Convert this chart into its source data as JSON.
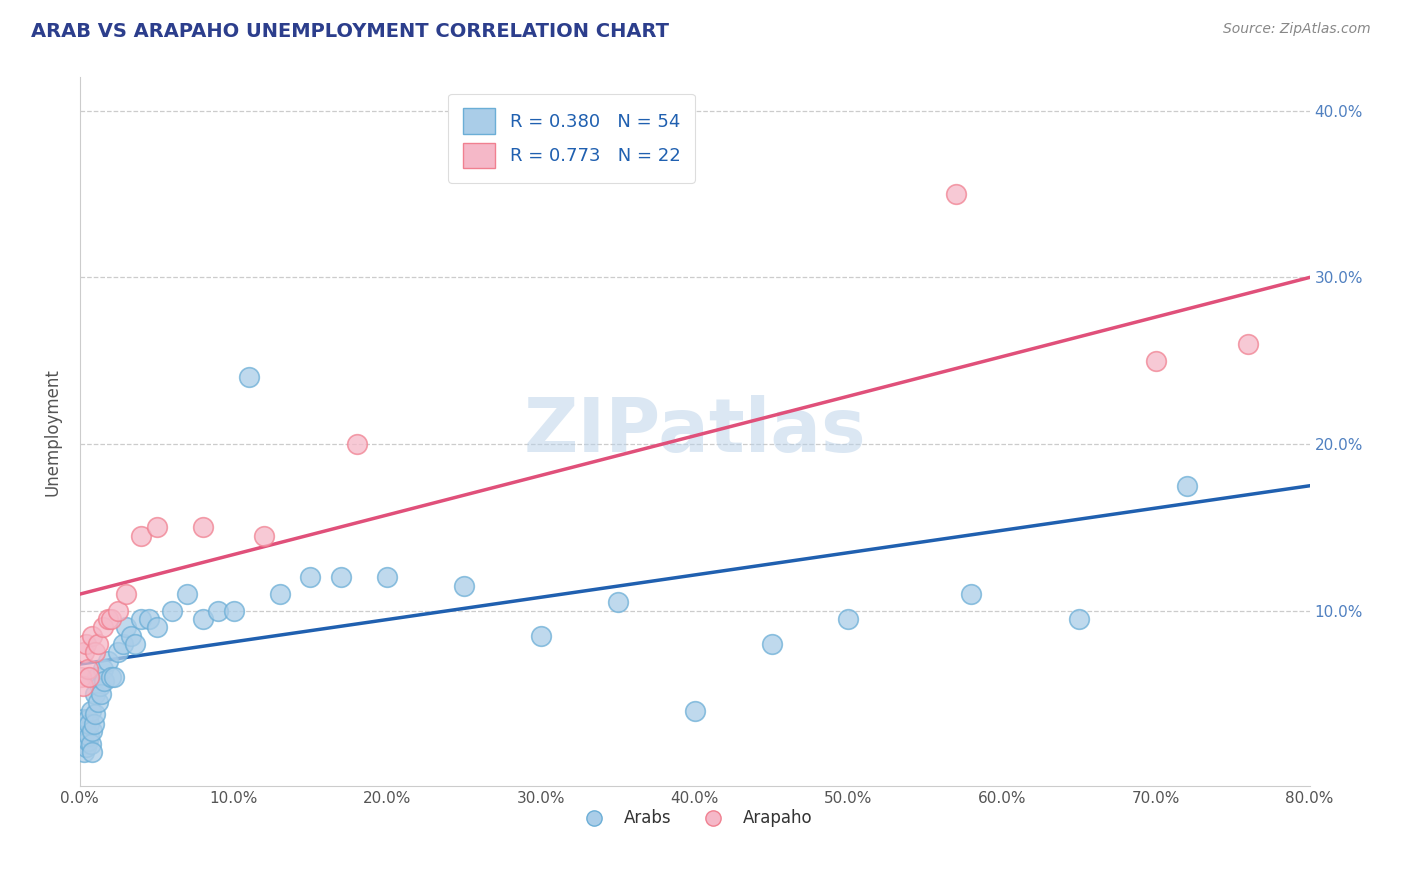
{
  "title": "ARAB VS ARAPAHO UNEMPLOYMENT CORRELATION CHART",
  "source": "Source: ZipAtlas.com",
  "ylabel": "Unemployment",
  "xlim": [
    0,
    0.8
  ],
  "ylim": [
    -0.005,
    0.42
  ],
  "xticks": [
    0.0,
    0.1,
    0.2,
    0.3,
    0.4,
    0.5,
    0.6,
    0.7,
    0.8
  ],
  "yticks": [
    0.1,
    0.2,
    0.3,
    0.4
  ],
  "xtick_labels": [
    "0.0%",
    "10.0%",
    "20.0%",
    "30.0%",
    "40.0%",
    "50.0%",
    "60.0%",
    "70.0%",
    "80.0%"
  ],
  "ytick_labels_right": [
    "10.0%",
    "20.0%",
    "30.0%",
    "40.0%"
  ],
  "watermark": "ZIPatlas",
  "arab_color": "#aacde8",
  "arapaho_color": "#f5b8c8",
  "arab_edge_color": "#6baed6",
  "arapaho_edge_color": "#f08090",
  "arab_line_color": "#2060b0",
  "arapaho_line_color": "#e0507a",
  "arab_R": 0.38,
  "arab_N": 54,
  "arapaho_R": 0.773,
  "arapaho_N": 22,
  "arab_x": [
    0.001,
    0.002,
    0.002,
    0.003,
    0.003,
    0.004,
    0.004,
    0.005,
    0.005,
    0.006,
    0.006,
    0.007,
    0.007,
    0.008,
    0.008,
    0.009,
    0.01,
    0.01,
    0.011,
    0.012,
    0.013,
    0.014,
    0.015,
    0.016,
    0.018,
    0.02,
    0.022,
    0.025,
    0.028,
    0.03,
    0.033,
    0.036,
    0.04,
    0.045,
    0.05,
    0.06,
    0.07,
    0.08,
    0.09,
    0.1,
    0.11,
    0.13,
    0.15,
    0.17,
    0.2,
    0.25,
    0.3,
    0.35,
    0.4,
    0.45,
    0.5,
    0.58,
    0.65,
    0.72
  ],
  "arab_y": [
    0.03,
    0.025,
    0.035,
    0.02,
    0.015,
    0.028,
    0.018,
    0.022,
    0.035,
    0.025,
    0.032,
    0.02,
    0.04,
    0.028,
    0.015,
    0.032,
    0.05,
    0.038,
    0.06,
    0.045,
    0.055,
    0.05,
    0.065,
    0.058,
    0.07,
    0.06,
    0.06,
    0.075,
    0.08,
    0.09,
    0.085,
    0.08,
    0.095,
    0.095,
    0.09,
    0.1,
    0.11,
    0.095,
    0.1,
    0.1,
    0.24,
    0.11,
    0.12,
    0.12,
    0.12,
    0.115,
    0.085,
    0.105,
    0.04,
    0.08,
    0.095,
    0.11,
    0.095,
    0.175
  ],
  "arapaho_x": [
    0.001,
    0.002,
    0.003,
    0.004,
    0.005,
    0.006,
    0.008,
    0.01,
    0.012,
    0.015,
    0.018,
    0.02,
    0.025,
    0.03,
    0.04,
    0.05,
    0.08,
    0.12,
    0.18,
    0.57,
    0.7,
    0.76
  ],
  "arapaho_y": [
    0.06,
    0.055,
    0.075,
    0.08,
    0.065,
    0.06,
    0.085,
    0.075,
    0.08,
    0.09,
    0.095,
    0.095,
    0.1,
    0.11,
    0.145,
    0.15,
    0.15,
    0.145,
    0.2,
    0.35,
    0.25,
    0.26
  ],
  "arab_trend_x": [
    0.0,
    0.8
  ],
  "arab_trend_y": [
    0.068,
    0.175
  ],
  "arapaho_trend_x": [
    0.0,
    0.8
  ],
  "arapaho_trend_y": [
    0.11,
    0.3
  ]
}
